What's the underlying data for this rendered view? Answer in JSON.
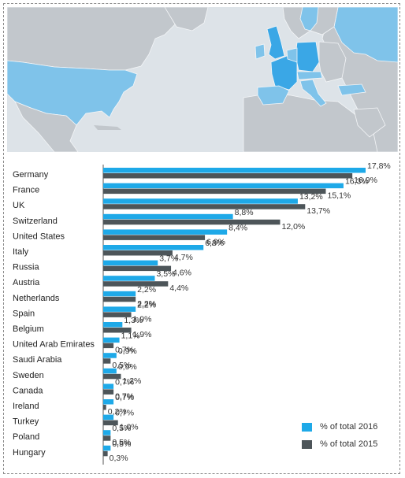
{
  "colors": {
    "series_2016": "#1ea9e8",
    "series_2015": "#4d5559",
    "map_sea": "#dde3e8",
    "map_land": "#c2c7cc",
    "map_highlight": "#7fc3ea",
    "map_highlight_strong": "#3aa7e6"
  },
  "chart_data": {
    "type": "bar",
    "orientation": "horizontal",
    "categories": [
      "Germany",
      "France",
      "UK",
      "Switzerland",
      "United States",
      "Italy",
      "Russia",
      "Austria",
      "Netherlands",
      "Spain",
      "Belgium",
      "United Arab Emirates",
      "Saudi Arabia",
      "Sweden",
      "Canada",
      "Ireland",
      "Turkey",
      "Poland",
      "Hungary"
    ],
    "series": [
      {
        "name": "% of total 2016",
        "values": [
          17.8,
          16.3,
          13.2,
          8.8,
          8.4,
          6.8,
          3.7,
          3.5,
          2.2,
          2.2,
          1.3,
          1.1,
          0.9,
          0.9,
          0.7,
          0.7,
          0.7,
          0.5,
          0.5
        ],
        "labels": [
          "17,8%",
          "16,3%",
          "13,2%",
          "8,8%",
          "8,4%",
          "6,8%",
          "3,7%",
          "3,5%",
          "2,2%",
          "2,2%",
          "1,3%",
          "1,1%",
          "0,9%",
          "0,9%",
          "0,7%",
          "0,7%",
          "0,7%",
          "0,5%",
          "0,5%"
        ]
      },
      {
        "name": "% of total 2015",
        "values": [
          16.9,
          15.1,
          13.7,
          12.0,
          6.9,
          4.7,
          4.6,
          4.4,
          2.2,
          1.9,
          1.9,
          0.7,
          0.5,
          1.2,
          0.7,
          0.2,
          1.0,
          0.5,
          0.3
        ],
        "labels": [
          "16,9%",
          "15,1%",
          "13,7%",
          "12,0%",
          "6,9%",
          "4,7%",
          "4,6%",
          "4,4%",
          "2,2%",
          "1,9%",
          "1,9%",
          "0,7%",
          "0,5%",
          "1,2%",
          "0,7%",
          "0,2%",
          "1,0%",
          "0,5%",
          "0,3%"
        ]
      }
    ],
    "legend_position": "bottom-right",
    "grid": false
  }
}
